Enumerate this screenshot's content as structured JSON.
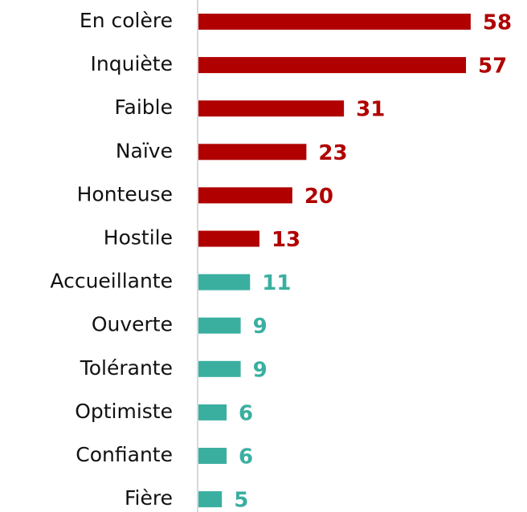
{
  "chart_data": {
    "type": "barh",
    "categories": [
      "En colère",
      "Inquiète",
      "Faible",
      "Naïve",
      "Honteuse",
      "Hostile",
      "Accueillante",
      "Ouverte",
      "Tolérante",
      "Optimiste",
      "Confiante",
      "Fière"
    ],
    "values": [
      58,
      57,
      31,
      23,
      20,
      13,
      11,
      9,
      9,
      6,
      6,
      5
    ],
    "colors": [
      "#b00000",
      "#b00000",
      "#b00000",
      "#b00000",
      "#b00000",
      "#b00000",
      "#3aafa0",
      "#3aafa0",
      "#3aafa0",
      "#3aafa0",
      "#3aafa0",
      "#3aafa0"
    ],
    "xlim": [
      0,
      70
    ]
  }
}
